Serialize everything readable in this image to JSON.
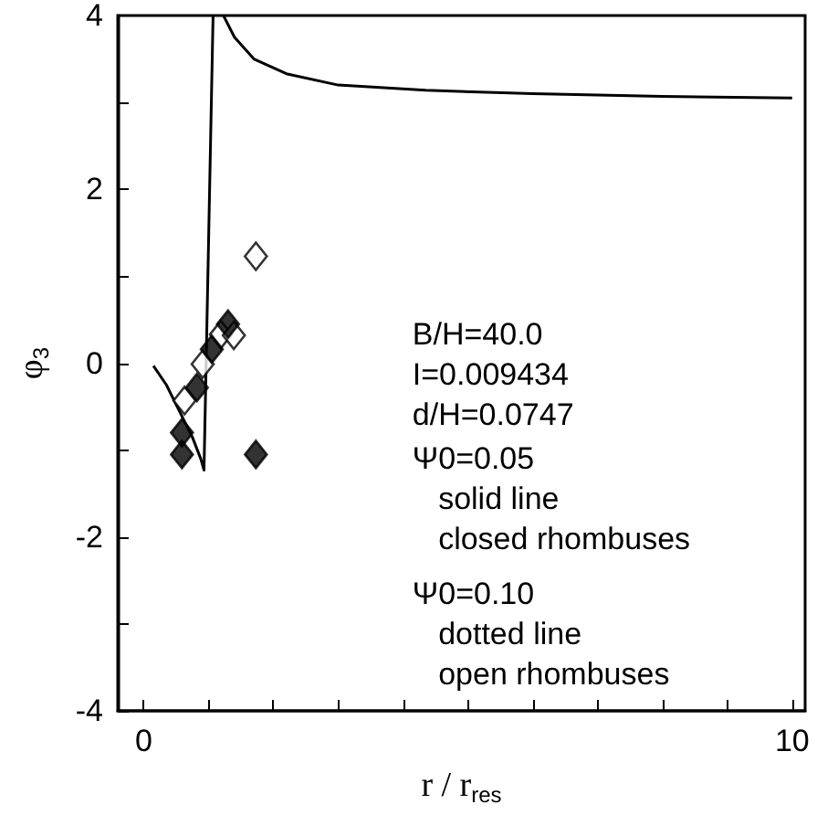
{
  "chart_data": {
    "type": "scatter",
    "xlabel": "r / r$_{res}$",
    "ylabel": "φ$_{3}$",
    "xlim": [
      -0.4,
      10.2
    ],
    "ylim": [
      -4,
      4
    ],
    "xticks": [
      0,
      {
        "value": 1,
        "label": null
      },
      {
        "value": 2,
        "label": null
      },
      {
        "value": 3,
        "label": null
      },
      {
        "value": 4,
        "label": null
      },
      {
        "value": 5,
        "label": null
      },
      {
        "value": 6,
        "label": null
      },
      {
        "value": 7,
        "label": null
      },
      {
        "value": 8,
        "label": null
      },
      {
        "value": 9,
        "label": null
      },
      10
    ],
    "yticks": [
      -4,
      {
        "value": -3,
        "label": null
      },
      -2,
      {
        "value": -1,
        "label": null
      },
      0,
      {
        "value": 1,
        "label": null
      },
      2,
      {
        "value": 3,
        "label": null
      },
      4
    ],
    "grid": false,
    "marker": "diamond",
    "annotations": [
      "B/H=40.0\nI=0.009434\nd/H=0.0747",
      "Ψ0=0.05\n   solid line\n   closed rhombuses",
      "Ψ0=0.10\n   dotted line\n   open rhombuses"
    ],
    "series": [
      {
        "type": "line",
        "color": "#000000",
        "marker": "none",
        "x": [
          0.15,
          0.35,
          0.55,
          0.75,
          0.88,
          0.93,
          1.07
        ],
        "values": [
          -0.03,
          -0.25,
          -0.55,
          -0.85,
          -1.1,
          -1.23,
          4
        ]
      },
      {
        "type": "line",
        "color": "#000000",
        "marker": "none",
        "x": [
          1.23,
          1.4,
          1.7,
          2.2,
          3,
          4.35,
          6,
          8,
          10
        ],
        "values": [
          4,
          3.75,
          3.5,
          3.33,
          3.2,
          3.14,
          3.1,
          3.07,
          3.05
        ]
      },
      {
        "color": "#000000",
        "x": [
          0.59,
          0.59,
          1.73,
          0.82,
          1.05,
          1.3
        ],
        "values": [
          -0.8,
          -1.05,
          -1.05,
          -0.28,
          0.16,
          0.45
        ]
      },
      {
        "color": "#ffffff",
        "x": [
          1.73,
          0.63,
          0.91,
          1.19,
          1.39
        ],
        "values": [
          1.23,
          -0.43,
          -0.01,
          0.33,
          0.32
        ]
      }
    ]
  }
}
